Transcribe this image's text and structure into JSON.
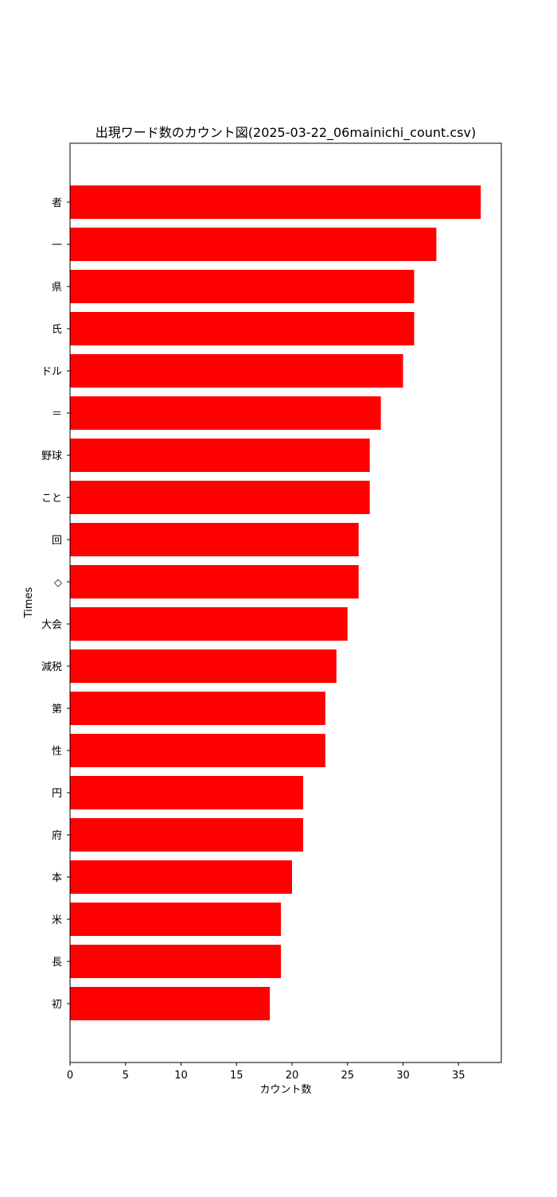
{
  "chart_data": {
    "type": "bar",
    "orientation": "horizontal",
    "title": "出現ワード数のカウント図(2025-03-22_06mainichi_count.csv)",
    "xlabel": "カウント数",
    "ylabel": "Times",
    "xlim": [
      0,
      38.85
    ],
    "xticks": [
      0,
      5,
      10,
      15,
      20,
      25,
      30,
      35
    ],
    "grid": false,
    "legend": "none",
    "bar_color": "#ff0000",
    "categories": [
      "者",
      "一",
      "県",
      "氏",
      "ドル",
      "＝",
      "野球",
      "こと",
      "回",
      "◇",
      "大会",
      "減税",
      "第",
      "性",
      "円",
      "府",
      "本",
      "米",
      "長",
      "初"
    ],
    "values": [
      37,
      33,
      31,
      31,
      30,
      28,
      27,
      27,
      26,
      26,
      25,
      24,
      23,
      23,
      21,
      21,
      20,
      19,
      19,
      18
    ]
  }
}
